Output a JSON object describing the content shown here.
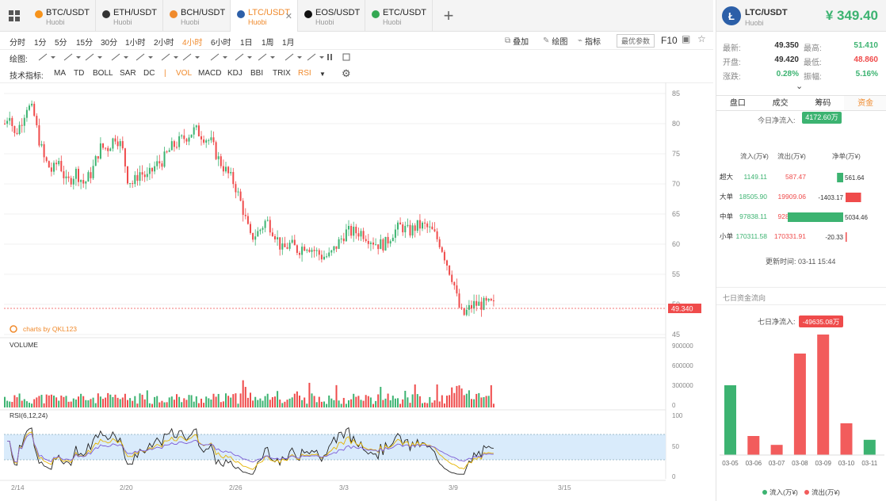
{
  "tabs": [
    {
      "symbol": "BTC/USDT",
      "exchange": "Huobi",
      "color": "#f7931a",
      "icon": "btc-icon"
    },
    {
      "symbol": "ETH/USDT",
      "exchange": "Huobi",
      "color": "#333333",
      "icon": "eth-icon"
    },
    {
      "symbol": "BCH/USDT",
      "exchange": "Huobi",
      "color": "#f08a2c",
      "icon": "bch-icon"
    },
    {
      "symbol": "LTC/USDT",
      "exchange": "Huobi",
      "color": "#2c5fa8",
      "icon": "ltc-icon",
      "active": true
    },
    {
      "symbol": "EOS/USDT",
      "exchange": "Huobi",
      "color": "#111111",
      "icon": "eos-icon"
    },
    {
      "symbol": "ETC/USDT",
      "exchange": "Huobi",
      "color": "#34a853",
      "icon": "etc-icon"
    }
  ],
  "timeframes": [
    "分时",
    "1分",
    "5分",
    "15分",
    "30分",
    "1小时",
    "2小时",
    "4小时",
    "6小时",
    "1日",
    "1周",
    "1月"
  ],
  "active_timeframe": "4小时",
  "toolbar_right": {
    "overlay": "叠加",
    "draw": "绘图",
    "indicator": "指标",
    "best_params": "最优参数",
    "f10": "F10"
  },
  "draw_label": "绘图:",
  "indicators_label": "技术指标:",
  "indicators": [
    "MA",
    "TD",
    "BOLL",
    "SAR",
    "DC",
    "|",
    "VOL",
    "MACD",
    "KDJ",
    "BBI",
    "TRIX",
    "RSI"
  ],
  "active_indicators": [
    "VOL",
    "RSI"
  ],
  "chart": {
    "price_ticks": [
      "85",
      "80",
      "75",
      "70",
      "65",
      "60",
      "55",
      "50",
      "45"
    ],
    "current_price_label": "49.340",
    "watermark": "charts by QKL123",
    "volume_label": "VOLUME",
    "volume_ticks": [
      "900000",
      "600000",
      "300000",
      "0"
    ],
    "rsi_label": "RSI(6,12,24)",
    "rsi_ticks": [
      "100",
      "50",
      "0"
    ],
    "date_ticks": [
      "2/14",
      "2/20",
      "2/26",
      "3/3",
      "3/9",
      "3/15"
    ],
    "up_color": "#3cb371",
    "down_color": "#ef4b4b"
  },
  "ticker": {
    "symbol": "LTC/USDT",
    "exchange": "Huobi",
    "price": "¥ 349.40",
    "rows": [
      {
        "l1": "最新:",
        "v1": "49.350",
        "l2": "最高:",
        "v2": "51.410"
      },
      {
        "l1": "开盘:",
        "v1": "49.420",
        "l2": "最低:",
        "v2": "48.860"
      },
      {
        "l1": "涨跌:",
        "v1": "0.28%",
        "l2": "振幅:",
        "v2": "5.16%"
      }
    ]
  },
  "fund_tabs": [
    "盘口",
    "成交",
    "筹码",
    "资金"
  ],
  "active_fund_tab": "资金",
  "funds": {
    "today_label": "今日净流入:",
    "today_value": "4172.60万",
    "headers": [
      "流入(万¥)",
      "流出(万¥)",
      "净单(万¥)"
    ],
    "rows": [
      {
        "name": "超大",
        "inflow": "1149.11",
        "outflow": "587.47",
        "net": "561.64",
        "net_value": 561.64
      },
      {
        "name": "大单",
        "inflow": "18505.90",
        "outflow": "19909.06",
        "net": "-1403.17",
        "net_value": -1403.17
      },
      {
        "name": "中单",
        "inflow": "97838.11",
        "outflow": "92803.65",
        "net": "5034.46",
        "net_value": 5034.46
      },
      {
        "name": "小单",
        "inflow": "170311.58",
        "outflow": "170331.91",
        "net": "-20.33",
        "net_value": -20.33
      }
    ],
    "update_label": "更新时间:",
    "update_time": "03-11 15:44"
  },
  "seven_day": {
    "section_title": "七日资金流向",
    "net_label": "七日净流入:",
    "net_value": "-49635.08万",
    "legend_in": "流入(万¥)",
    "legend_out": "流出(万¥)",
    "in_color": "#3cb371",
    "out_color": "#f25c5c"
  },
  "chart_data": [
    {
      "type": "bar",
      "title": "七日资金流向",
      "categories": [
        "03-05",
        "03-06",
        "03-07",
        "03-08",
        "03-09",
        "03-10",
        "03-11"
      ],
      "values": [
        0.55,
        0.15,
        0.08,
        0.8,
        0.95,
        0.25,
        0.12
      ],
      "flow": [
        "in",
        "out",
        "out",
        "out",
        "out",
        "out",
        "in"
      ]
    }
  ]
}
